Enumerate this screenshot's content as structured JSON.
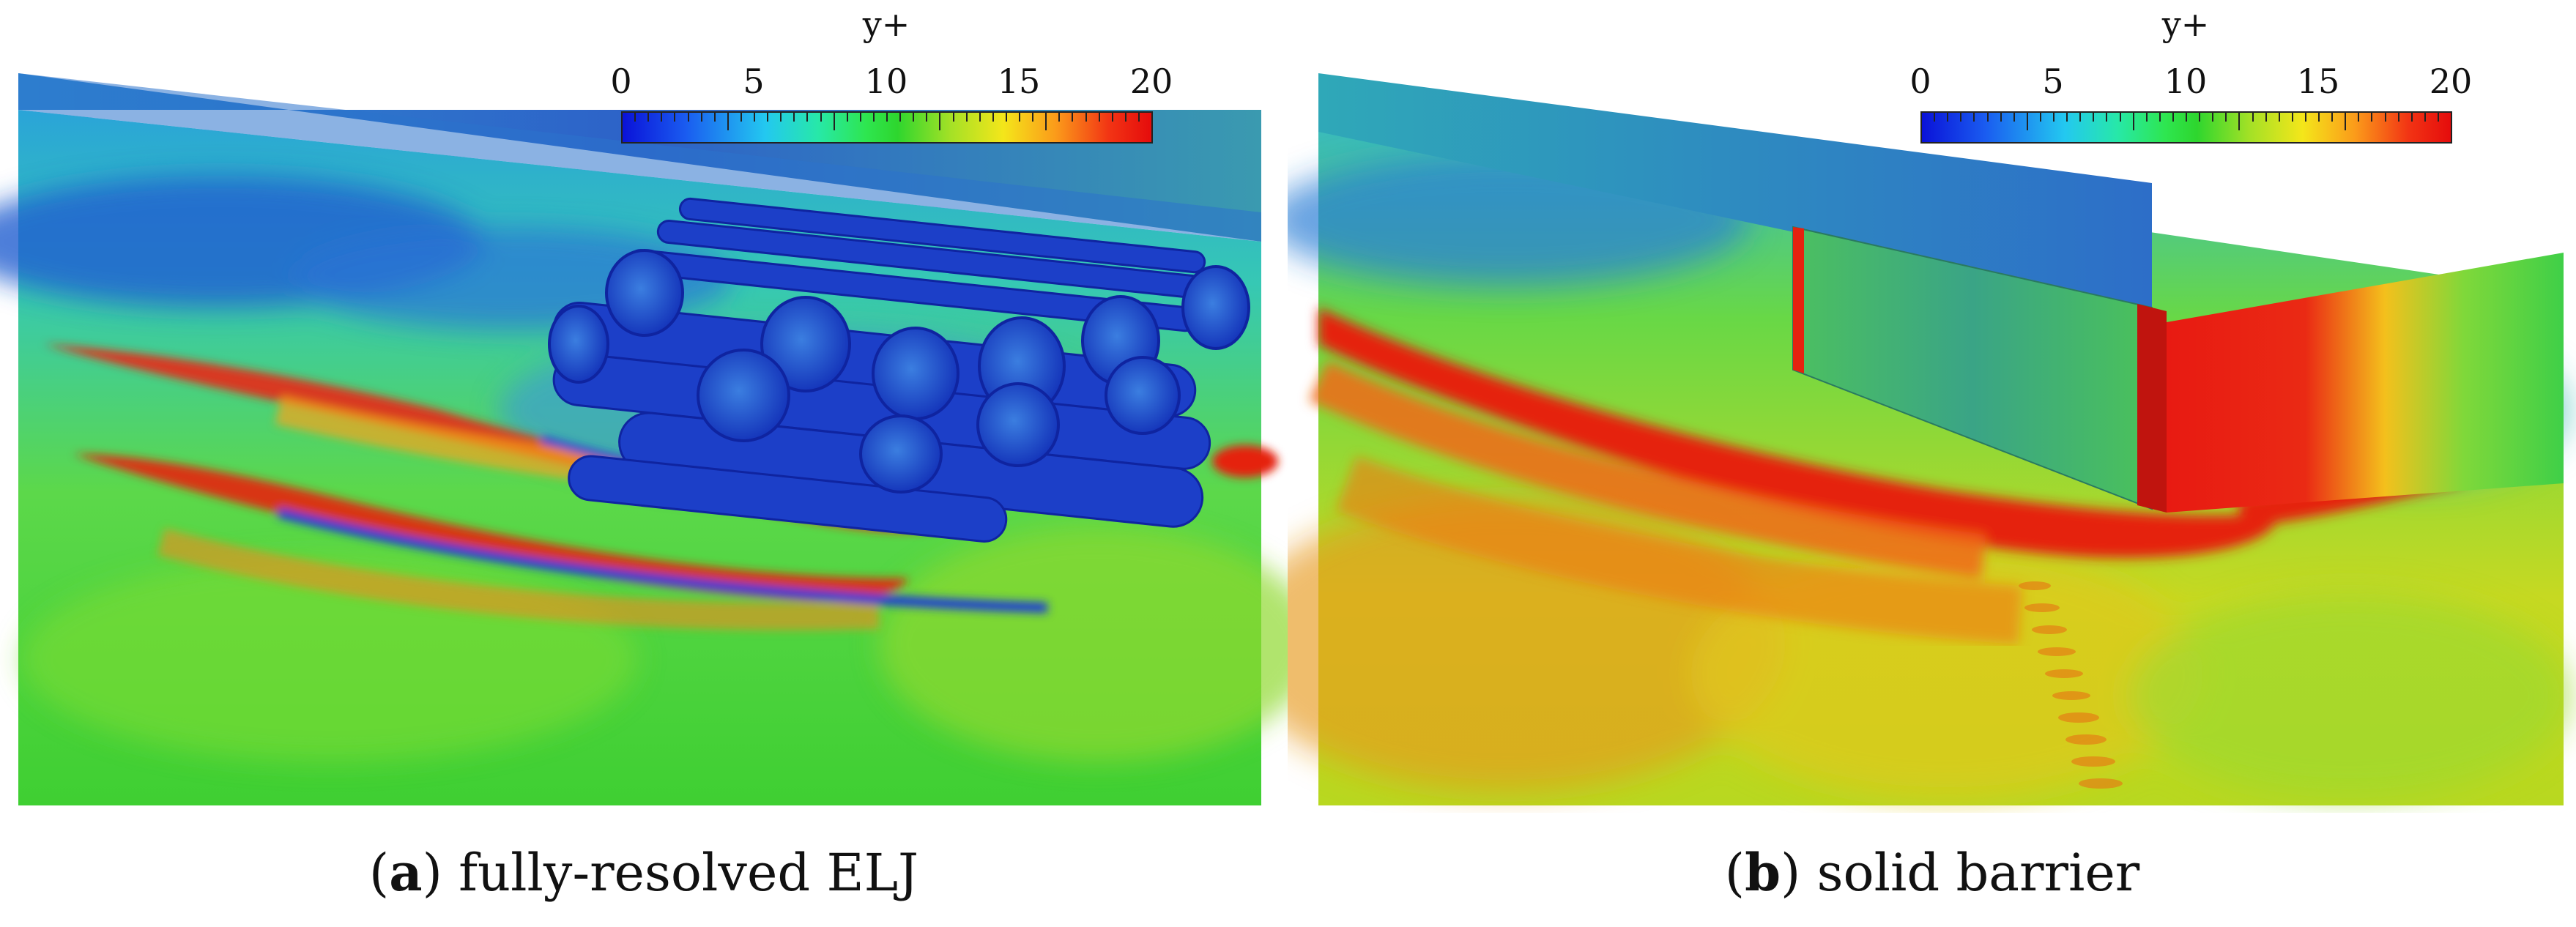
{
  "colorbar": {
    "title": "y+",
    "ticks": [
      "0",
      "5",
      "10",
      "15",
      "20"
    ],
    "range": [
      0,
      20
    ]
  },
  "panels": [
    {
      "id": "a",
      "caption_letter": "a",
      "caption_text": " fully-resolved ELJ"
    },
    {
      "id": "b",
      "caption_letter": "b",
      "caption_text": " solid barrier"
    }
  ]
}
